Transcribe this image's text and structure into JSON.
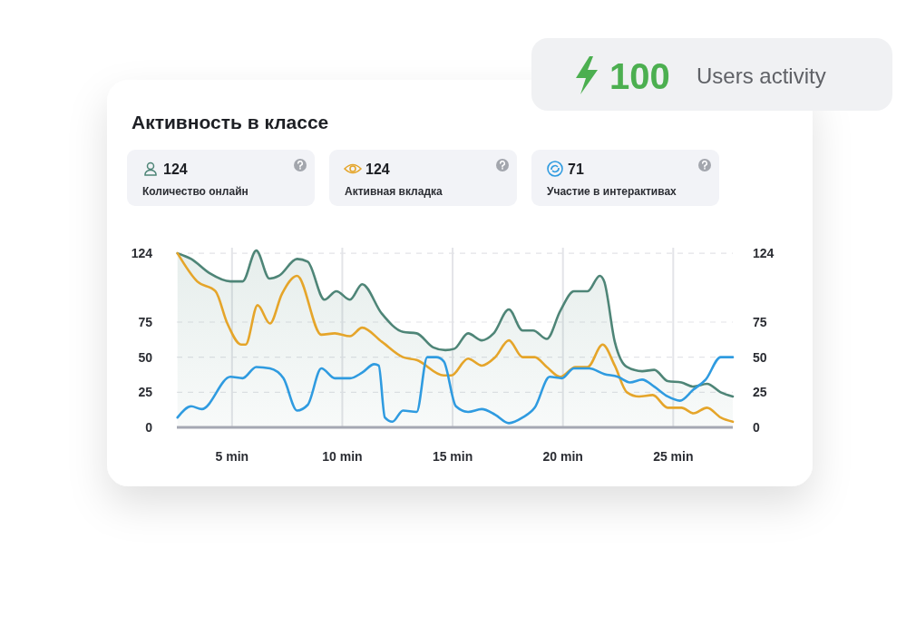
{
  "chart_data": [
    {
      "type": "other",
      "categories": [
        "Users activity"
      ],
      "values": [
        100
      ],
      "data_labels": true
    },
    {
      "type": "other",
      "title": "Активность в классе",
      "categories": [
        "Количество онлайн",
        "Активная вкладка",
        "Участие в интерактивах"
      ],
      "values": [
        124,
        124,
        71
      ],
      "data_labels": true
    },
    {
      "type": "area",
      "xlim": [
        2.5,
        27.7
      ],
      "xticks": [
        {
          "value": 5,
          "label": "5 min"
        },
        {
          "value": 10,
          "label": "10 min"
        },
        {
          "value": 15,
          "label": "15 min"
        },
        {
          "value": 20,
          "label": "20 min"
        },
        {
          "value": 25,
          "label": "25 min"
        }
      ],
      "ylim": [
        0,
        128
      ],
      "yticks": [
        0,
        25,
        50,
        75,
        124
      ],
      "y2lim": [
        0,
        128
      ],
      "y2ticks": [
        0,
        25,
        50,
        75,
        124
      ],
      "grid": true,
      "series": [
        {
          "color": "#4e8577",
          "x": [
            2.53,
            3.15,
            3.97,
            4.93,
            5.48,
            6.1,
            6.7,
            7.13,
            7.95,
            8.43,
            9.19,
            9.73,
            10.35,
            10.9,
            11.79,
            12.75,
            13.37,
            14.12,
            14.67,
            15.08,
            15.7,
            16.32,
            16.86,
            17.55,
            18.17,
            18.65,
            19.27,
            19.88,
            20.5,
            21.12,
            21.67,
            21.87,
            22.35,
            22.9,
            23.59,
            24.14,
            24.75,
            25.37,
            25.92,
            26.53,
            27.15,
            27.7
          ],
          "values": [
            124,
            120,
            110,
            104,
            104,
            126,
            106,
            108,
            120,
            118,
            91,
            97,
            91,
            102,
            81,
            68,
            67,
            57,
            55,
            56,
            67,
            62,
            67,
            84,
            69,
            69,
            63,
            83,
            97,
            97,
            108,
            104,
            61,
            43,
            40,
            41,
            33,
            32,
            29,
            31,
            25,
            22
          ]
        },
        {
          "type": "line",
          "color": "#e5a52a",
          "x": [
            2.53,
            3.42,
            4.25,
            4.79,
            5.41,
            5.62,
            6.16,
            6.72,
            7.26,
            7.95,
            9.05,
            9.66,
            10.35,
            10.9,
            11.79,
            12.75,
            13.37,
            14.6,
            14.94,
            15.7,
            16.32,
            16.93,
            17.55,
            18.17,
            18.72,
            19.27,
            19.88,
            20.57,
            21.12,
            21.8,
            22.35,
            22.9,
            23.45,
            24.07,
            24.75,
            25.37,
            25.92,
            26.53,
            27.15,
            27.7
          ],
          "values": [
            124,
            104,
            97,
            74,
            59,
            59,
            87,
            74,
            95,
            108,
            66,
            67,
            65,
            71,
            61,
            50,
            48,
            37,
            37,
            49,
            44,
            50,
            62,
            50,
            50,
            43,
            36,
            43,
            43,
            59,
            44,
            25,
            22,
            23,
            14,
            14,
            10,
            14,
            7,
            4
          ]
        },
        {
          "type": "line",
          "color": "#2f9be0",
          "x": [
            2.53,
            3.15,
            3.63,
            4.93,
            5.48,
            6.1,
            6.72,
            7.33,
            7.95,
            8.43,
            9.05,
            9.66,
            10.35,
            10.9,
            11.45,
            11.65,
            11.93,
            12.27,
            12.75,
            13.37,
            13.85,
            14.26,
            14.6,
            15.15,
            15.7,
            16.32,
            16.93,
            17.55,
            18.17,
            18.72,
            19.4,
            19.95,
            20.5,
            21.19,
            21.87,
            22.49,
            23.04,
            23.59,
            24.14,
            24.75,
            25.3,
            25.92,
            26.47,
            27.15,
            27.7
          ],
          "values": [
            7,
            15,
            13,
            36,
            35,
            43,
            42,
            35,
            12,
            16,
            42,
            35,
            35,
            39,
            45,
            44,
            7,
            4,
            12,
            11,
            50,
            50,
            47,
            15,
            11,
            13,
            9,
            3,
            7,
            14,
            36,
            35,
            42,
            42,
            38,
            36,
            32,
            34,
            29,
            22,
            19,
            27,
            34,
            50,
            50
          ]
        }
      ]
    }
  ]
}
